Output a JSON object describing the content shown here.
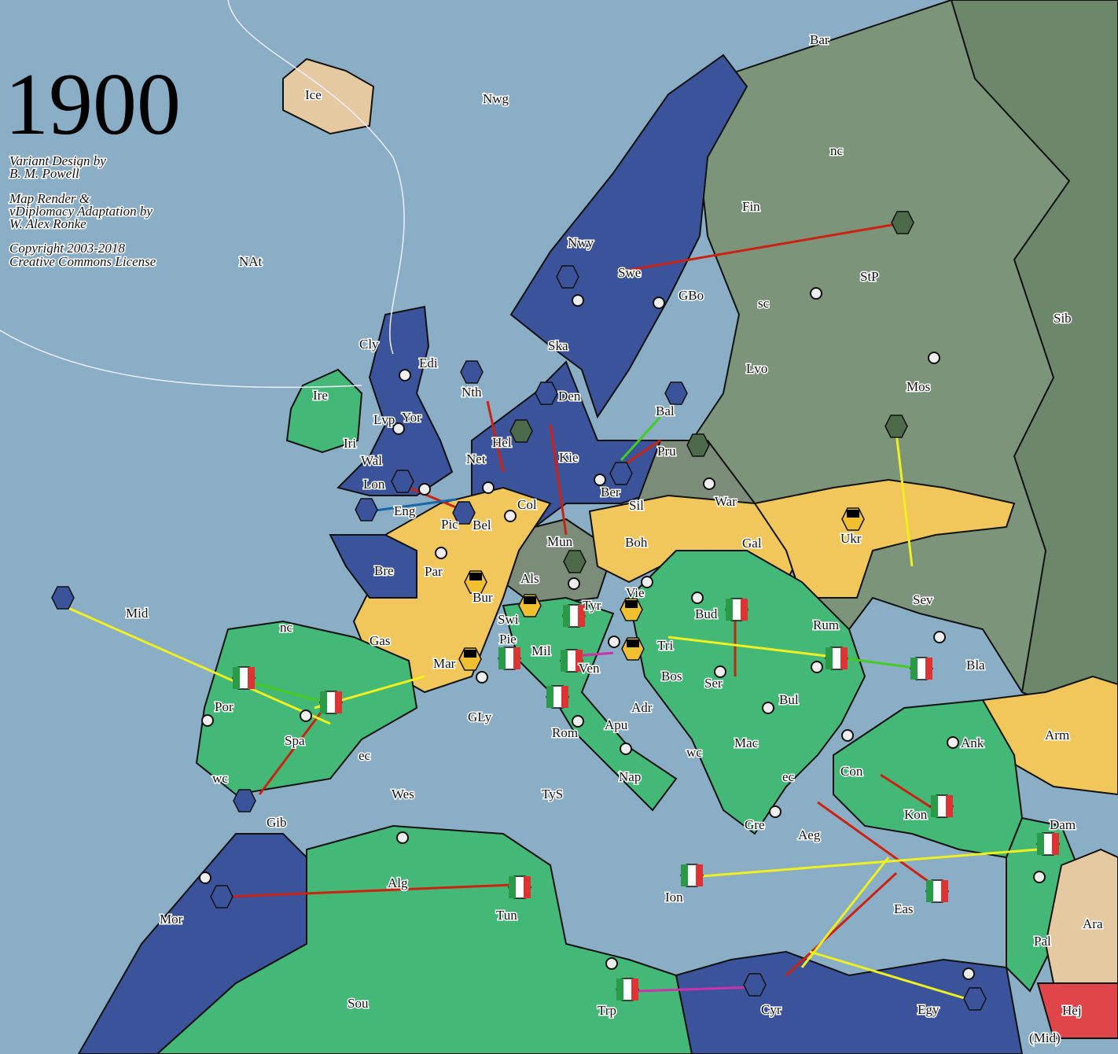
{
  "year": "1900",
  "credits": [
    "Variant Design by",
    "B. M. Powell",
    "Map Render &",
    "vDiplomacy Adaptation by",
    "W. Alex Ronke",
    "Copyright 2003-2018",
    "Creative Commons License"
  ],
  "colors": {
    "sea": "#8aaec6",
    "britain": "#3a539b",
    "france": "#f1c75c",
    "germany": "#7b8c78",
    "russia": "#7c9479",
    "austria": "#f1c75c",
    "italy": "#43b877",
    "turkey": "#43b877",
    "neutral": "#e5c9a0",
    "hejaz": "#e0454a",
    "move": "#cc2211",
    "support": "#f0f020",
    "convoy": "#44cc22",
    "retreat": "#cc33aa"
  },
  "territories": [
    "Bar",
    "Ice",
    "Nwg",
    "nc",
    "Fin",
    "NAt",
    "Nwy",
    "Swe",
    "GBo",
    "StP",
    "sc",
    "Sib",
    "Cly",
    "Edi",
    "Ska",
    "Lvo",
    "Mos",
    "Ire",
    "Yor",
    "Nth",
    "Den",
    "Bal",
    "Lvp",
    "Iri",
    "Hel",
    "Wal",
    "Net",
    "Kie",
    "Pru",
    "Lon",
    "Ber",
    "Eng",
    "Pic",
    "Bel",
    "Col",
    "Sil",
    "War",
    "Ukr",
    "Mun",
    "Boh",
    "Gal",
    "Bre",
    "Par",
    "Als",
    "Bur",
    "Vie",
    "Tyr",
    "Swi",
    "Bud",
    "Sev",
    "Mid",
    "nc",
    "Gas",
    "Pie",
    "Mil",
    "Tri",
    "Rum",
    "Mar",
    "Ven",
    "Bla",
    "Bos",
    "Ser",
    "Por",
    "Spa",
    "GLy",
    "Adr",
    "Bul",
    "Arm",
    "Rom",
    "Apu",
    "Mac",
    "Ank",
    "ec",
    "wc",
    "Nap",
    "wc",
    "Con",
    "ec",
    "Wes",
    "TyS",
    "Kon",
    "Gib",
    "Gre",
    "Aeg",
    "Dam",
    "Alg",
    "Ion",
    "Mor",
    "Tun",
    "Eas",
    "Pal",
    "Ara",
    "Sou",
    "Trp",
    "Cyr",
    "Egy",
    "Hej",
    "(Mid)"
  ]
}
